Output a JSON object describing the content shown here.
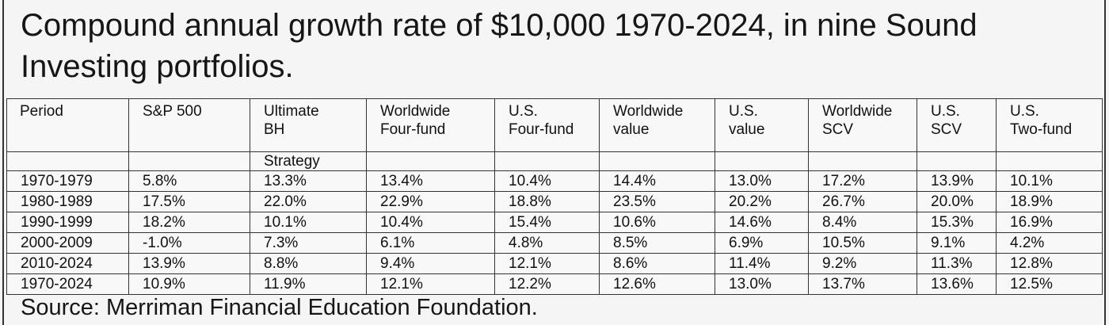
{
  "title": "Compound annual growth rate of $10,000 1970-2024, in nine Sound Investing portfolios.",
  "table": {
    "columns": [
      {
        "line1": "Period",
        "line2": ""
      },
      {
        "line1": "S&P 500",
        "line2": ""
      },
      {
        "line1": "Ultimate",
        "line2": "BH",
        "line3": "Strategy"
      },
      {
        "line1": "Worldwide",
        "line2": "Four-fund"
      },
      {
        "line1": "U.S.",
        "line2": "Four-fund"
      },
      {
        "line1": "Worldwide",
        "line2": "value"
      },
      {
        "line1": "U.S.",
        "line2": "value"
      },
      {
        "line1": "Worldwide",
        "line2": "SCV"
      },
      {
        "line1": "U.S.",
        "line2": "SCV"
      },
      {
        "line1": "U.S.",
        "line2": "Two-fund"
      }
    ],
    "rows": [
      [
        "1970-1979",
        "5.8%",
        "13.3%",
        "13.4%",
        "10.4%",
        "14.4%",
        "13.0%",
        "17.2%",
        "13.9%",
        "10.1%"
      ],
      [
        "1980-1989",
        "17.5%",
        "22.0%",
        "22.9%",
        "18.8%",
        "23.5%",
        "20.2%",
        "26.7%",
        "20.0%",
        "18.9%"
      ],
      [
        "1990-1999",
        "18.2%",
        "10.1%",
        "10.4%",
        "15.4%",
        "10.6%",
        "14.6%",
        "8.4%",
        "15.3%",
        "16.9%"
      ],
      [
        "2000-2009",
        "-1.0%",
        "7.3%",
        "6.1%",
        "4.8%",
        "8.5%",
        "6.9%",
        "10.5%",
        "9.1%",
        "4.2%"
      ],
      [
        "2010-2024",
        "13.9%",
        "8.8%",
        "9.4%",
        "12.1%",
        "8.6%",
        "11.4%",
        "9.2%",
        "11.3%",
        "12.8%"
      ],
      [
        "1970-2024",
        "10.9%",
        "11.9%",
        "12.1%",
        "12.2%",
        "12.6%",
        "13.0%",
        "13.7%",
        "13.6%",
        "12.5%"
      ]
    ]
  },
  "source": "Source: Merriman Financial Education Foundation."
}
